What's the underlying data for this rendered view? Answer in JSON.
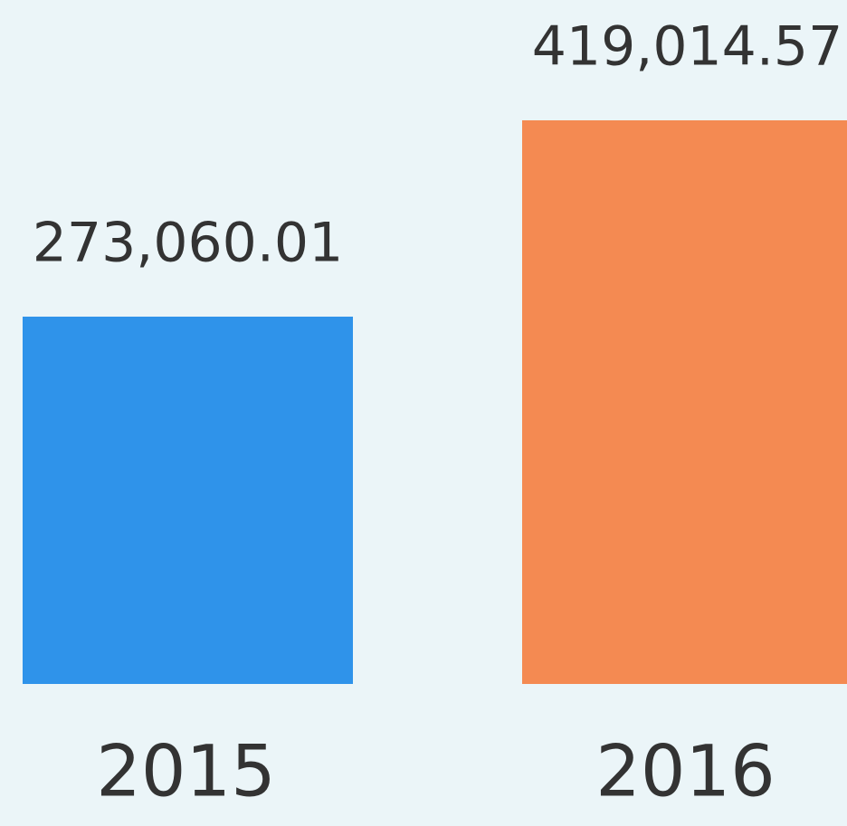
{
  "chart_data": {
    "type": "bar",
    "categories": [
      "2015",
      "2016"
    ],
    "values": [
      273060.01,
      419014.57
    ],
    "value_labels": [
      "273,060.01",
      "419,014.57"
    ],
    "colors": [
      "#2f93ea",
      "#f48a52"
    ]
  }
}
